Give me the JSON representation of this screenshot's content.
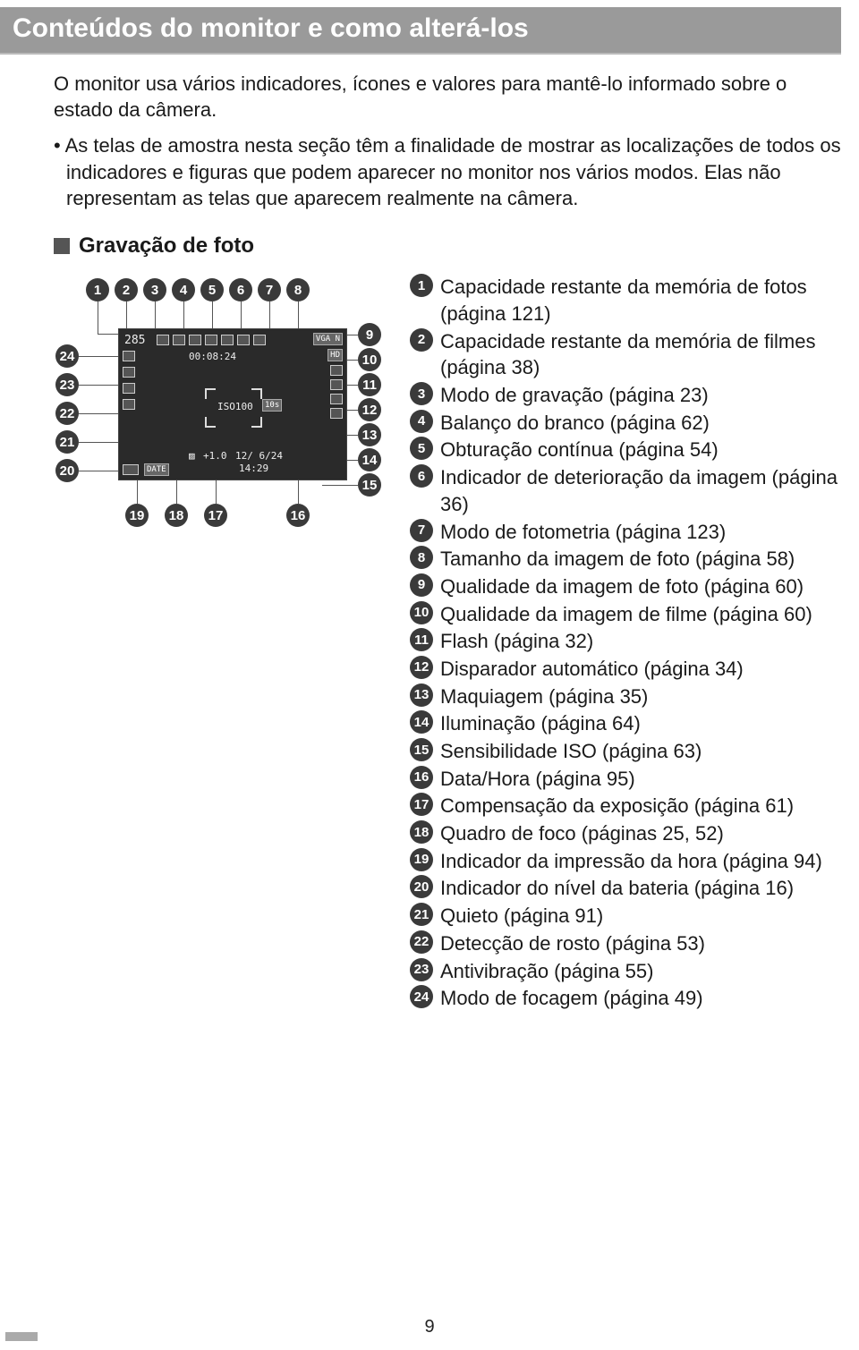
{
  "title": "Conteúdos do monitor e como alterá-los",
  "intro": "O monitor usa vários indicadores, ícones e valores para mantê-lo informado sobre o estado da câmera.",
  "bullet": "As telas de amostra nesta seção têm a finalidade de mostrar as localizações de todos os indicadores e figuras que podem aparecer no monitor nos vários modos. Elas não representam as telas que aparecem realmente na câmera.",
  "section_title": "Gravação de foto",
  "lcd": {
    "shots_remaining": "285",
    "rec_time": "00:08:24",
    "iso": "ISO100",
    "timer": "10s",
    "date": "12/ 6/24",
    "time": "14:29",
    "ev": "+1.0",
    "badge_vga": "VGA N",
    "badge_hd": "HD",
    "badge_date": "DATE"
  },
  "callout_numbers": {
    "top": [
      "1",
      "2",
      "3",
      "4",
      "5",
      "6",
      "7",
      "8"
    ],
    "right": [
      "9",
      "10",
      "11",
      "12",
      "13",
      "14",
      "15"
    ],
    "bottom": [
      "19",
      "18",
      "17",
      "16"
    ],
    "left": [
      "24",
      "23",
      "22",
      "21",
      "20"
    ]
  },
  "legend": [
    {
      "n": "1",
      "t": "Capacidade restante da memória de fotos (página 121)"
    },
    {
      "n": "2",
      "t": "Capacidade restante da memória de filmes (página 38)"
    },
    {
      "n": "3",
      "t": "Modo de gravação (página 23)"
    },
    {
      "n": "4",
      "t": "Balanço do branco (página 62)"
    },
    {
      "n": "5",
      "t": "Obturação contínua (página 54)"
    },
    {
      "n": "6",
      "t": "Indicador de deterioração da imagem (página 36)"
    },
    {
      "n": "7",
      "t": "Modo de fotometria (página 123)"
    },
    {
      "n": "8",
      "t": "Tamanho da imagem de foto (página 58)"
    },
    {
      "n": "9",
      "t": "Qualidade da imagem de foto (página 60)"
    },
    {
      "n": "10",
      "t": "Qualidade da imagem de filme (página 60)"
    },
    {
      "n": "11",
      "t": "Flash (página 32)"
    },
    {
      "n": "12",
      "t": "Disparador automático (página 34)"
    },
    {
      "n": "13",
      "t": "Maquiagem (página 35)"
    },
    {
      "n": "14",
      "t": "Iluminação (página 64)"
    },
    {
      "n": "15",
      "t": "Sensibilidade ISO (página 63)"
    },
    {
      "n": "16",
      "t": "Data/Hora (página 95)"
    },
    {
      "n": "17",
      "t": "Compensação da exposição (página 61)"
    },
    {
      "n": "18",
      "t": "Quadro de foco (páginas 25, 52)"
    },
    {
      "n": "19",
      "t": "Indicador da impressão da hora (página 94)"
    },
    {
      "n": "20",
      "t": "Indicador do nível da bateria (página 16)"
    },
    {
      "n": "21",
      "t": "Quieto (página 91)"
    },
    {
      "n": "22",
      "t": "Detecção de rosto (página 53)"
    },
    {
      "n": "23",
      "t": "Antivibração (página 55)"
    },
    {
      "n": "24",
      "t": "Modo de focagem (página 49)"
    }
  ],
  "page_number": "9"
}
